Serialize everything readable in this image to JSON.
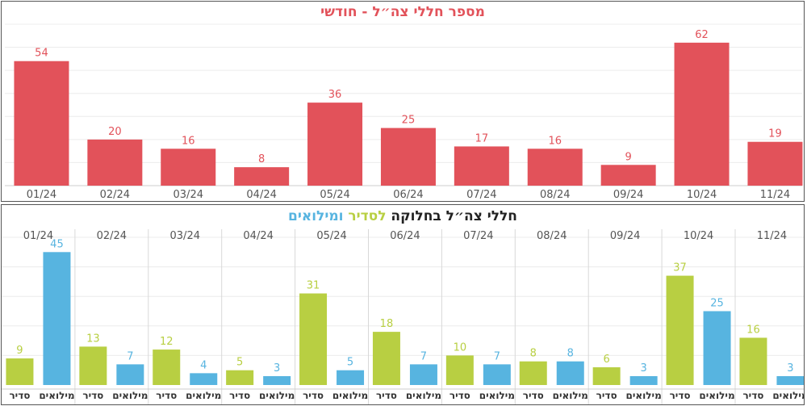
{
  "colors": {
    "total": "#e2525a",
    "regular": "#b8cf42",
    "reserve": "#57b4e0",
    "tick": "#555555",
    "grid": "#ececec",
    "divider": "#d8d8d8"
  },
  "chart_data": [
    {
      "type": "bar",
      "title": "מספר חללי צה״ל - חודשי",
      "categories": [
        "01/24",
        "02/24",
        "03/24",
        "04/24",
        "05/24",
        "06/24",
        "07/24",
        "08/24",
        "09/24",
        "10/24",
        "11/24"
      ],
      "values": [
        54,
        20,
        16,
        8,
        36,
        25,
        17,
        16,
        9,
        62,
        19
      ],
      "ylim": [
        0,
        70
      ],
      "grid": true,
      "legend": "none"
    },
    {
      "type": "bar",
      "title_parts": [
        "חללי צה״ל בחלוקה ",
        "לסדיר",
        " ו",
        "מילואים"
      ],
      "categories": [
        "01/24",
        "02/24",
        "03/24",
        "04/24",
        "05/24",
        "06/24",
        "07/24",
        "08/24",
        "09/24",
        "10/24",
        "11/24"
      ],
      "series": [
        {
          "name": "סדיר",
          "values": [
            9,
            13,
            12,
            5,
            31,
            18,
            10,
            8,
            6,
            37,
            16
          ]
        },
        {
          "name": "מילואים",
          "values": [
            45,
            7,
            4,
            3,
            5,
            7,
            7,
            8,
            3,
            25,
            3
          ]
        }
      ],
      "ylim": [
        0,
        50
      ],
      "grid": true,
      "legend": "none"
    }
  ]
}
